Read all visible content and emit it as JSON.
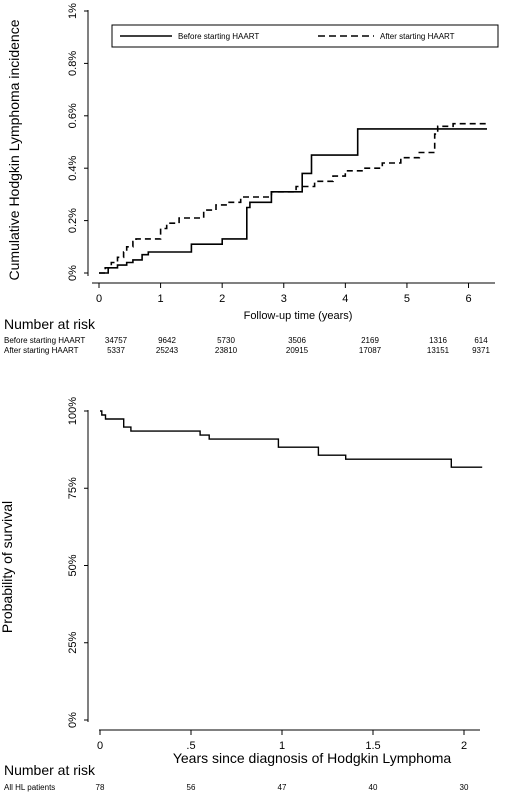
{
  "chart_data": [
    {
      "type": "line",
      "step": true,
      "xlabel": "Follow-up time (years)",
      "ylabel": "Cumulative Hodgkin Lymphoma incidence",
      "xlim": [
        0,
        6.3
      ],
      "ylim": [
        0,
        1.0
      ],
      "x_ticks": [
        "0",
        "1",
        "2",
        "3",
        "4",
        "5",
        "6"
      ],
      "y_ticks": [
        "0%",
        "0.2%",
        "0.4%",
        "0.6%",
        "0.8%",
        "1%"
      ],
      "legend_position": "top",
      "series": [
        {
          "name": "Before starting HAART",
          "style": "solid",
          "points": [
            [
              0,
              0
            ],
            [
              0.15,
              0.02
            ],
            [
              0.3,
              0.03
            ],
            [
              0.45,
              0.04
            ],
            [
              0.55,
              0.05
            ],
            [
              0.7,
              0.07
            ],
            [
              0.8,
              0.08
            ],
            [
              1.5,
              0.11
            ],
            [
              2.0,
              0.13
            ],
            [
              2.4,
              0.25
            ],
            [
              2.45,
              0.27
            ],
            [
              2.8,
              0.31
            ],
            [
              3.3,
              0.38
            ],
            [
              3.45,
              0.45
            ],
            [
              4.2,
              0.55
            ],
            [
              6.3,
              0.55
            ]
          ]
        },
        {
          "name": "After starting HAART",
          "style": "dashed",
          "points": [
            [
              0,
              0
            ],
            [
              0.1,
              0.02
            ],
            [
              0.2,
              0.04
            ],
            [
              0.3,
              0.06
            ],
            [
              0.4,
              0.08
            ],
            [
              0.45,
              0.1
            ],
            [
              0.55,
              0.12
            ],
            [
              0.6,
              0.13
            ],
            [
              1.0,
              0.17
            ],
            [
              1.1,
              0.19
            ],
            [
              1.3,
              0.21
            ],
            [
              1.7,
              0.24
            ],
            [
              1.9,
              0.26
            ],
            [
              2.1,
              0.27
            ],
            [
              2.3,
              0.29
            ],
            [
              2.8,
              0.31
            ],
            [
              3.2,
              0.33
            ],
            [
              3.5,
              0.35
            ],
            [
              3.8,
              0.37
            ],
            [
              4.0,
              0.39
            ],
            [
              4.3,
              0.4
            ],
            [
              4.6,
              0.42
            ],
            [
              4.9,
              0.44
            ],
            [
              5.2,
              0.46
            ],
            [
              5.45,
              0.53
            ],
            [
              5.5,
              0.56
            ],
            [
              5.75,
              0.57
            ],
            [
              6.0,
              0.57
            ],
            [
              6.3,
              0.57
            ]
          ]
        }
      ],
      "risk_table": {
        "title": "Number at risk",
        "rows": [
          {
            "label": "Before starting HAART",
            "values": [
              "34757",
              "9642",
              "5730",
              "3506",
              "2169",
              "1316",
              "614"
            ]
          },
          {
            "label": "After starting HAART",
            "values": [
              "5337",
              "25243",
              "23810",
              "20915",
              "17087",
              "13151",
              "9371"
            ]
          }
        ]
      }
    },
    {
      "type": "line",
      "step": true,
      "xlabel": "Years since diagnosis of Hodgkin Lymphoma",
      "ylabel": "Probability of survival",
      "xlim": [
        0,
        2.2
      ],
      "ylim": [
        0,
        100
      ],
      "x_ticks": [
        "0",
        ".5",
        "1",
        "1.5",
        "2"
      ],
      "y_ticks": [
        "0%",
        "25%",
        "50%",
        "75%",
        "100%"
      ],
      "series": [
        {
          "name": "All HL patients",
          "style": "solid",
          "points": [
            [
              0,
              100
            ],
            [
              0.01,
              98.7
            ],
            [
              0.03,
              97.4
            ],
            [
              0.13,
              94.8
            ],
            [
              0.17,
              93.5
            ],
            [
              0.55,
              92.2
            ],
            [
              0.6,
              90.9
            ],
            [
              0.98,
              88.3
            ],
            [
              1.2,
              85.7
            ],
            [
              1.35,
              84.4
            ],
            [
              1.93,
              81.8
            ],
            [
              2.1,
              81.8
            ]
          ]
        }
      ],
      "risk_table": {
        "title": "Number at risk",
        "rows": [
          {
            "label": "All HL patients",
            "values": [
              "78",
              "56",
              "47",
              "40",
              "30"
            ]
          }
        ]
      }
    }
  ]
}
